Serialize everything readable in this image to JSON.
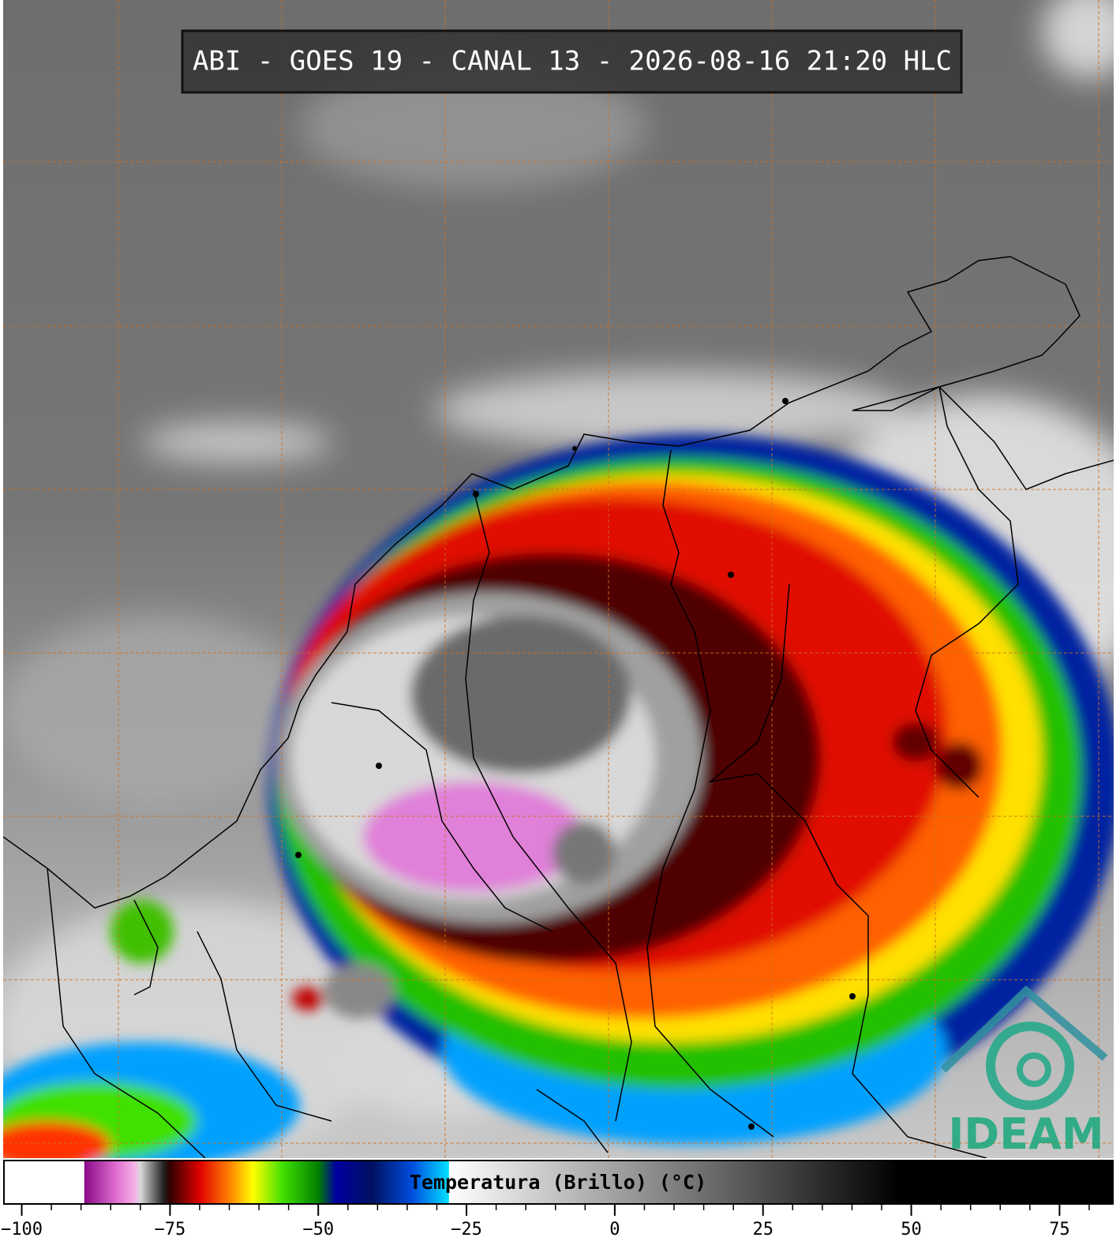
{
  "header": {
    "title": "ABI - GOES 19 - CANAL 13 - 2026-08-16 21:20 HLC"
  },
  "logo": {
    "text": "IDEAM"
  },
  "colorbar": {
    "label": "Temperatura (Brillo) (°C)",
    "lim": [
      -103,
      84
    ],
    "ticks": [
      {
        "value": -100,
        "label": "−100"
      },
      {
        "value": -75,
        "label": "−75"
      },
      {
        "value": -50,
        "label": "−50"
      },
      {
        "value": -25,
        "label": "−25"
      },
      0,
      25,
      50,
      75
    ],
    "minor_step": 5,
    "stops": [
      {
        "value": -103,
        "color": "#ffffff"
      },
      {
        "value": -89.5,
        "color": "#ffffff"
      },
      {
        "value": -89.4,
        "color": "#8a0a8a"
      },
      {
        "value": -84,
        "color": "#e070d0"
      },
      {
        "value": -81,
        "color": "#f4b0e8"
      },
      {
        "value": -80,
        "color": "#d8d8d8"
      },
      {
        "value": -76,
        "color": "#202020"
      },
      {
        "value": -75,
        "color": "#300000"
      },
      {
        "value": -70,
        "color": "#e00000"
      },
      {
        "value": -65,
        "color": "#ff8000"
      },
      {
        "value": -61,
        "color": "#ffff00"
      },
      {
        "value": -56,
        "color": "#40e000"
      },
      {
        "value": -50,
        "color": "#008000"
      },
      {
        "value": -47,
        "color": "#0000a0"
      },
      {
        "value": -41,
        "color": "#001060"
      },
      {
        "value": -34,
        "color": "#0050e0"
      },
      {
        "value": -28,
        "color": "#00e0ff"
      },
      {
        "value": -27.9,
        "color": "#ffffff"
      },
      {
        "value": 48,
        "color": "#000000"
      },
      {
        "value": 84,
        "color": "#000000"
      }
    ]
  }
}
